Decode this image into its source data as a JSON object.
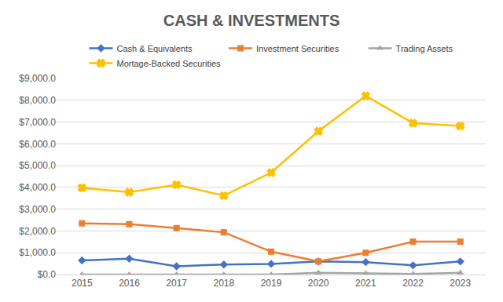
{
  "chart_data": {
    "type": "line",
    "title": "CASH & INVESTMENTS",
    "categories": [
      "2015",
      "2016",
      "2017",
      "2018",
      "2019",
      "2020",
      "2021",
      "2022",
      "2023"
    ],
    "series": [
      {
        "name": "Cash & Equivalents",
        "color": "#4472c4",
        "marker": "diamond",
        "values": [
          650,
          730,
          380,
          460,
          490,
          600,
          570,
          420,
          600
        ]
      },
      {
        "name": "Investment Securities",
        "color": "#ed7d31",
        "marker": "square",
        "values": [
          2350,
          2310,
          2130,
          1940,
          1050,
          600,
          1000,
          1510,
          1510
        ]
      },
      {
        "name": "Trading Assets",
        "color": "#a5a5a5",
        "marker": "triangle-up",
        "values": [
          0,
          0,
          0,
          0,
          0,
          80,
          50,
          30,
          80
        ]
      },
      {
        "name": "Mortage-Backed Securities",
        "color": "#ffc000",
        "marker": "x",
        "values": [
          3980,
          3780,
          4120,
          3620,
          4680,
          6580,
          8200,
          6950,
          6820
        ]
      }
    ],
    "ylim": [
      0,
      9000
    ],
    "yticks": [
      {
        "value": 0,
        "label": "$0.0"
      },
      {
        "value": 1000,
        "label": "$1,000.0"
      },
      {
        "value": 2000,
        "label": "$2,000.0"
      },
      {
        "value": 3000,
        "label": "$3,000.0"
      },
      {
        "value": 4000,
        "label": "$4,000.0"
      },
      {
        "value": 5000,
        "label": "$5,000.0"
      },
      {
        "value": 6000,
        "label": "$6,000.0"
      },
      {
        "value": 7000,
        "label": "$7,000.0"
      },
      {
        "value": 8000,
        "label": "$8,000.0"
      },
      {
        "value": 9000,
        "label": "$9,000.0"
      }
    ],
    "grid": true,
    "legend": "top"
  }
}
